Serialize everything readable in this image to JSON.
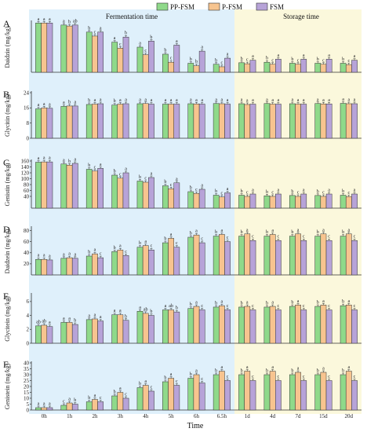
{
  "legend": [
    {
      "label": "PP-FSM",
      "color": "#8fd98a"
    },
    {
      "label": "P-FSM",
      "color": "#f7c48f"
    },
    {
      "label": "FSM",
      "color": "#b7a3d8"
    }
  ],
  "phases": {
    "fermentation": "Fermentation time",
    "storage": "Storage time"
  },
  "x_title": "Time",
  "colors": {
    "fermentation_bg": "#dff0fb",
    "storage_bg": "#fbf8dc",
    "bar_stroke": "#333333"
  },
  "chart_data": [
    {
      "id": "A",
      "type": "bar",
      "ylabel": "Daidzin (mg/kg)",
      "ylim": [
        0,
        100
      ],
      "yticks": [],
      "categories": [
        "0h",
        "1h",
        "2h",
        "3h",
        "4h",
        "5h",
        "6h",
        "6.5h",
        "1d",
        "4d",
        "7d",
        "15d",
        "20d"
      ],
      "series": [
        {
          "name": "PP-FSM",
          "values": [
            98,
            94,
            80,
            60,
            50,
            36,
            18,
            16,
            19,
            20,
            18,
            18,
            18
          ]
        },
        {
          "name": "P-FSM",
          "values": [
            98,
            92,
            72,
            48,
            35,
            20,
            13,
            11,
            17,
            16,
            16,
            16,
            15
          ]
        },
        {
          "name": "FSM",
          "values": [
            98,
            94,
            80,
            70,
            62,
            54,
            42,
            28,
            24,
            26,
            26,
            26,
            24
          ]
        }
      ],
      "letters": [
        [
          "a",
          "a",
          "a"
        ],
        [
          "a",
          "b",
          "ab"
        ],
        [
          "b",
          "c",
          "a"
        ],
        [
          "a",
          "c",
          "b"
        ],
        [
          "a",
          "c",
          "b"
        ],
        [
          "b",
          "c",
          "a"
        ],
        [
          "b",
          "b",
          "a"
        ],
        [
          "b",
          "c",
          "a"
        ],
        [
          "b",
          "c",
          "a"
        ],
        [
          "b",
          "c",
          "a"
        ],
        [
          "b",
          "c",
          "a"
        ],
        [
          "b",
          "c",
          "a"
        ],
        [
          "b",
          "c",
          "a"
        ]
      ]
    },
    {
      "id": "B",
      "type": "bar",
      "ylabel": "Glycitin (mg/kg)",
      "ylim": [
        0,
        24
      ],
      "yticks": [
        0,
        8,
        16,
        24
      ],
      "categories": [
        "0h",
        "1h",
        "2h",
        "3h",
        "4h",
        "5h",
        "6h",
        "6.5h",
        "1d",
        "4d",
        "7d",
        "15d",
        "20d"
      ],
      "series": [
        {
          "name": "PP-FSM",
          "values": [
            15.5,
            16.8,
            17.8,
            17.5,
            18.2,
            18.0,
            18.2,
            18.3,
            18.2,
            18.3,
            18.2,
            18.3,
            18.4
          ]
        },
        {
          "name": "P-FSM",
          "values": [
            16.0,
            17.0,
            18.0,
            18.0,
            18.3,
            18.0,
            18.1,
            18.2,
            17.8,
            18.0,
            18.0,
            18.1,
            18.2
          ]
        },
        {
          "name": "FSM",
          "values": [
            15.8,
            17.0,
            18.2,
            18.2,
            18.0,
            18.0,
            18.0,
            18.0,
            18.0,
            18.0,
            18.0,
            18.1,
            18.2
          ]
        }
      ],
      "letters": [
        [
          "a",
          "a",
          "a"
        ],
        [
          "a",
          "b",
          "a"
        ],
        [
          "b",
          "a",
          "a"
        ],
        [
          "b",
          "a",
          "a"
        ],
        [
          "a",
          "a",
          "a"
        ],
        [
          "a",
          "a",
          "a"
        ],
        [
          "a",
          "a",
          "a"
        ],
        [
          "a",
          "a",
          "a"
        ],
        [
          "a",
          "a",
          "a"
        ],
        [
          "a",
          "a",
          "a"
        ],
        [
          "a",
          "a",
          "a"
        ],
        [
          "a",
          "a",
          "a"
        ],
        [
          "a",
          "a",
          "a"
        ]
      ]
    },
    {
      "id": "C",
      "type": "bar",
      "ylabel": "Genistin (mg/kg)",
      "ylim": [
        0,
        160
      ],
      "yticks": [
        40,
        60,
        80,
        100,
        120,
        140,
        160
      ],
      "categories": [
        "0h",
        "1h",
        "2h",
        "3h",
        "4h",
        "5h",
        "6h",
        "6.5h",
        "1d",
        "4d",
        "7d",
        "15d",
        "20d"
      ],
      "series": [
        {
          "name": "PP-FSM",
          "values": [
            156,
            150,
            132,
            112,
            92,
            76,
            56,
            44,
            44,
            42,
            43,
            43,
            44
          ]
        },
        {
          "name": "P-FSM",
          "values": [
            157,
            146,
            126,
            102,
            88,
            66,
            50,
            38,
            40,
            40,
            40,
            40,
            39
          ]
        },
        {
          "name": "FSM",
          "values": [
            157,
            152,
            135,
            120,
            104,
            86,
            64,
            52,
            48,
            48,
            48,
            48,
            48
          ]
        }
      ],
      "letters": [
        [
          "a",
          "a",
          "a"
        ],
        [
          "a",
          "b",
          "a"
        ],
        [
          "b",
          "c",
          "a"
        ],
        [
          "b",
          "c",
          "a"
        ],
        [
          "b",
          "c",
          "a"
        ],
        [
          "b",
          "c",
          "a"
        ],
        [
          "b",
          "c",
          "a"
        ],
        [
          "b",
          "c",
          "a"
        ],
        [
          "b",
          "c",
          "a"
        ],
        [
          "b",
          "c",
          "a"
        ],
        [
          "b",
          "c",
          "a"
        ],
        [
          "b",
          "c",
          "a"
        ],
        [
          "b",
          "c",
          "a"
        ]
      ]
    },
    {
      "id": "D",
      "type": "bar",
      "ylabel": "Daidzein (mg/kg)",
      "ylim": [
        0,
        85
      ],
      "yticks": [
        20,
        40,
        60,
        80
      ],
      "categories": [
        "0h",
        "1h",
        "2h",
        "3h",
        "4h",
        "5h",
        "6h",
        "6.5h",
        "1d",
        "4d",
        "7d",
        "15d",
        "20d"
      ],
      "series": [
        {
          "name": "PP-FSM",
          "values": [
            28,
            30,
            34,
            42,
            50,
            58,
            68,
            70,
            70,
            70,
            70,
            70,
            70
          ]
        },
        {
          "name": "P-FSM",
          "values": [
            28,
            31,
            38,
            45,
            53,
            66,
            72,
            73,
            74,
            73,
            74,
            74,
            74
          ]
        },
        {
          "name": "FSM",
          "values": [
            27,
            30,
            31,
            35,
            45,
            50,
            58,
            60,
            62,
            62,
            62,
            62,
            62
          ]
        }
      ],
      "letters": [
        [
          "a",
          "a",
          "a"
        ],
        [
          "a",
          "a",
          "a"
        ],
        [
          "b",
          "a",
          "c"
        ],
        [
          "b",
          "a",
          "c"
        ],
        [
          "b",
          "a",
          "c"
        ],
        [
          "b",
          "a",
          "c"
        ],
        [
          "b",
          "a",
          "c"
        ],
        [
          "b",
          "a",
          "c"
        ],
        [
          "b",
          "a",
          "c"
        ],
        [
          "b",
          "a",
          "c"
        ],
        [
          "b",
          "a",
          "c"
        ],
        [
          "b",
          "a",
          "c"
        ],
        [
          "b",
          "a",
          "c"
        ]
      ]
    },
    {
      "id": "E",
      "type": "bar",
      "ylabel": "Glycitein (mg/kg)",
      "ylim": [
        0,
        7
      ],
      "yticks": [
        0,
        2,
        4,
        6
      ],
      "categories": [
        "0h",
        "1h",
        "2h",
        "3h",
        "4h",
        "5h",
        "6h",
        "6.5h",
        "1d",
        "4d",
        "7d",
        "15d",
        "20d"
      ],
      "series": [
        {
          "name": "PP-FSM",
          "values": [
            2.5,
            3.0,
            3.4,
            4.1,
            4.6,
            4.8,
            5.0,
            5.2,
            5.2,
            5.2,
            5.3,
            5.3,
            5.4
          ]
        },
        {
          "name": "P-FSM",
          "values": [
            2.6,
            3.0,
            3.5,
            4.1,
            4.3,
            4.8,
            5.3,
            5.4,
            5.3,
            5.3,
            5.5,
            5.5,
            5.5
          ]
        },
        {
          "name": "FSM",
          "values": [
            2.4,
            2.7,
            3.2,
            3.3,
            4.0,
            4.5,
            4.8,
            4.8,
            4.8,
            4.8,
            4.8,
            4.8,
            4.8
          ]
        }
      ],
      "letters": [
        [
          "ab",
          "ab",
          "a"
        ],
        [
          "a",
          "a",
          "b"
        ],
        [
          "a",
          "a",
          "a"
        ],
        [
          "a",
          "a",
          "b"
        ],
        [
          "a",
          "ab",
          "b"
        ],
        [
          "a",
          "ab",
          "b"
        ],
        [
          "b",
          "a",
          "c"
        ],
        [
          "b",
          "a",
          "c"
        ],
        [
          "b",
          "a",
          "c"
        ],
        [
          "b",
          "a",
          "c"
        ],
        [
          "b",
          "a",
          "c"
        ],
        [
          "b",
          "a",
          "c"
        ],
        [
          "b",
          "a",
          "c"
        ]
      ]
    },
    {
      "id": "F",
      "type": "bar",
      "ylabel": "Genistein (mg/kg)",
      "ylim": [
        0,
        40
      ],
      "yticks": [
        0,
        5,
        10,
        15,
        20,
        25,
        30,
        35,
        40
      ],
      "categories": [
        "0h",
        "1h",
        "2h",
        "3h",
        "4h",
        "5h",
        "6h",
        "6.5h",
        "1d",
        "4d",
        "7d",
        "15d",
        "20d"
      ],
      "series": [
        {
          "name": "PP-FSM",
          "values": [
            2,
            4,
            7,
            12,
            19,
            24,
            27,
            30,
            30,
            30,
            30,
            30,
            30
          ]
        },
        {
          "name": "P-FSM",
          "values": [
            2,
            6,
            9,
            15,
            21,
            27,
            30,
            33,
            33,
            33,
            32,
            32,
            33
          ]
        },
        {
          "name": "FSM",
          "values": [
            2,
            5,
            7,
            10,
            16,
            21,
            23,
            25,
            25,
            25,
            25,
            25,
            25
          ]
        }
      ],
      "letters": [
        [
          "a",
          "a",
          "a"
        ],
        [
          "c",
          "a",
          "b"
        ],
        [
          "b",
          "a",
          "c"
        ],
        [
          "b",
          "a",
          "c"
        ],
        [
          "b",
          "a",
          "c"
        ],
        [
          "b",
          "a",
          "c"
        ],
        [
          "b",
          "a",
          "c"
        ],
        [
          "b",
          "a",
          "c"
        ],
        [
          "b",
          "a",
          "c"
        ],
        [
          "b",
          "a",
          "c"
        ],
        [
          "b",
          "a",
          "c"
        ],
        [
          "b",
          "a",
          "c"
        ],
        [
          "b",
          "a",
          "c"
        ]
      ]
    }
  ]
}
